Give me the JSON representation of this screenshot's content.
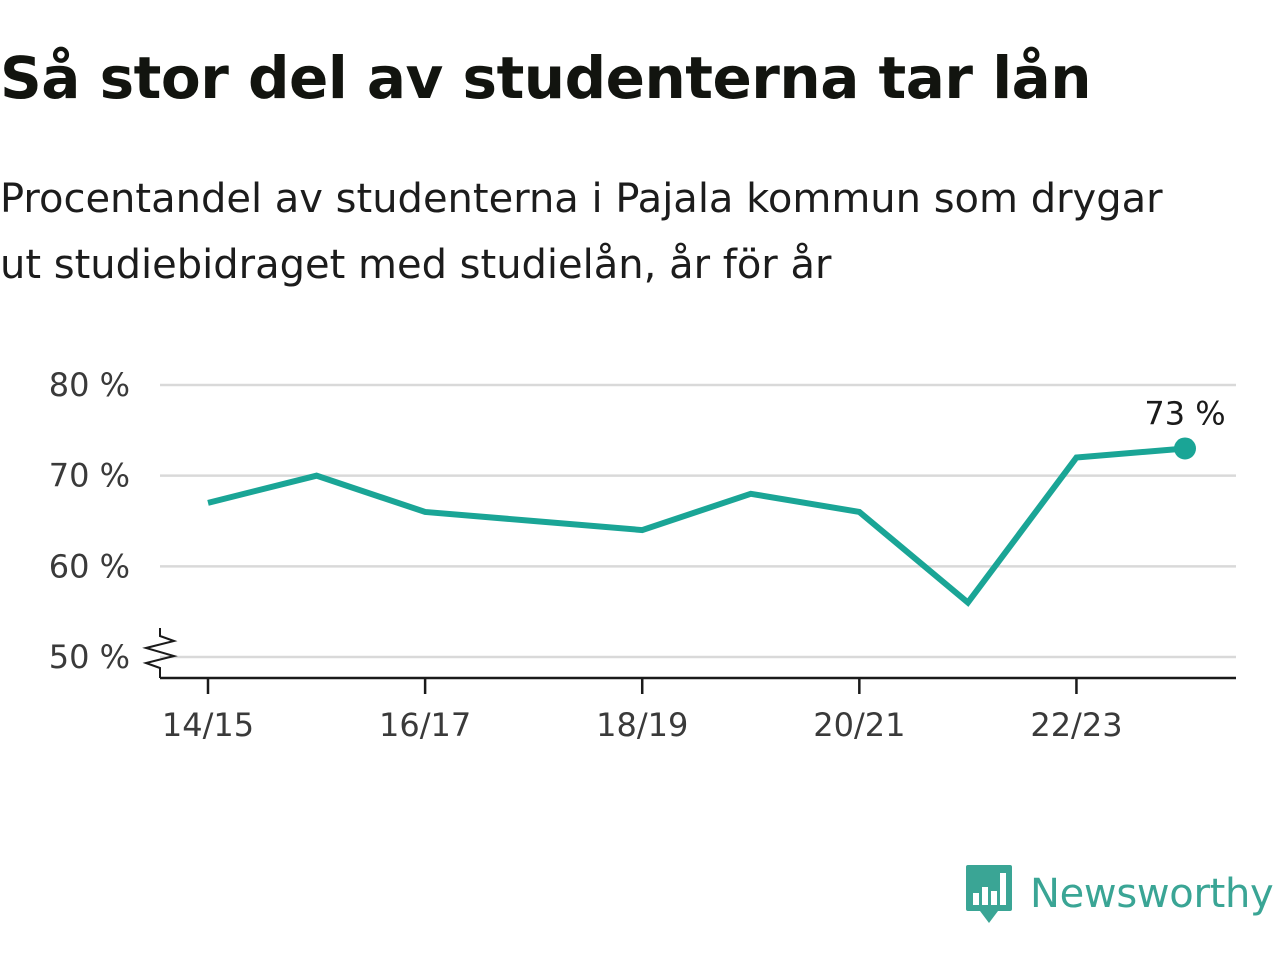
{
  "title": "Så stor del av studenterna tar lån",
  "subtitle_lines": [
    "Procentandel av studenterna i Pajala kommun som drygar",
    "ut studiebidraget med studielån, år för år"
  ],
  "brand": {
    "name": "Newsworthy",
    "logo_icon": "newsworthy-bar-chart-logo-icon"
  },
  "colors": {
    "line": "#1aa596",
    "grid": "#d9d9d9",
    "axis": "#1a1a1a",
    "brand": "#3aa595"
  },
  "chart_data": {
    "type": "line",
    "title": "Så stor del av studenterna tar lån",
    "subtitle": "Procentandel av studenterna i Pajala kommun som drygar ut studiebidraget med studielån, år för år",
    "x": [
      "14/15",
      "15/16",
      "16/17",
      "17/18",
      "18/19",
      "19/20",
      "20/21",
      "21/22",
      "22/23",
      "23/24"
    ],
    "x_tick_labels": [
      "14/15",
      "16/17",
      "18/19",
      "20/21",
      "22/23"
    ],
    "series": [
      {
        "values": [
          67,
          70,
          66,
          65,
          64,
          68,
          66,
          56,
          72,
          73
        ]
      }
    ],
    "y_ticks": [
      50,
      60,
      70,
      80
    ],
    "y_tick_labels": [
      "50 %",
      "60 %",
      "70 %",
      "80 %"
    ],
    "ylim": [
      50,
      80
    ],
    "y_axis_break": true,
    "end_label": "73 %",
    "grid": true,
    "legend": "none",
    "xlabel": "",
    "ylabel": ""
  }
}
